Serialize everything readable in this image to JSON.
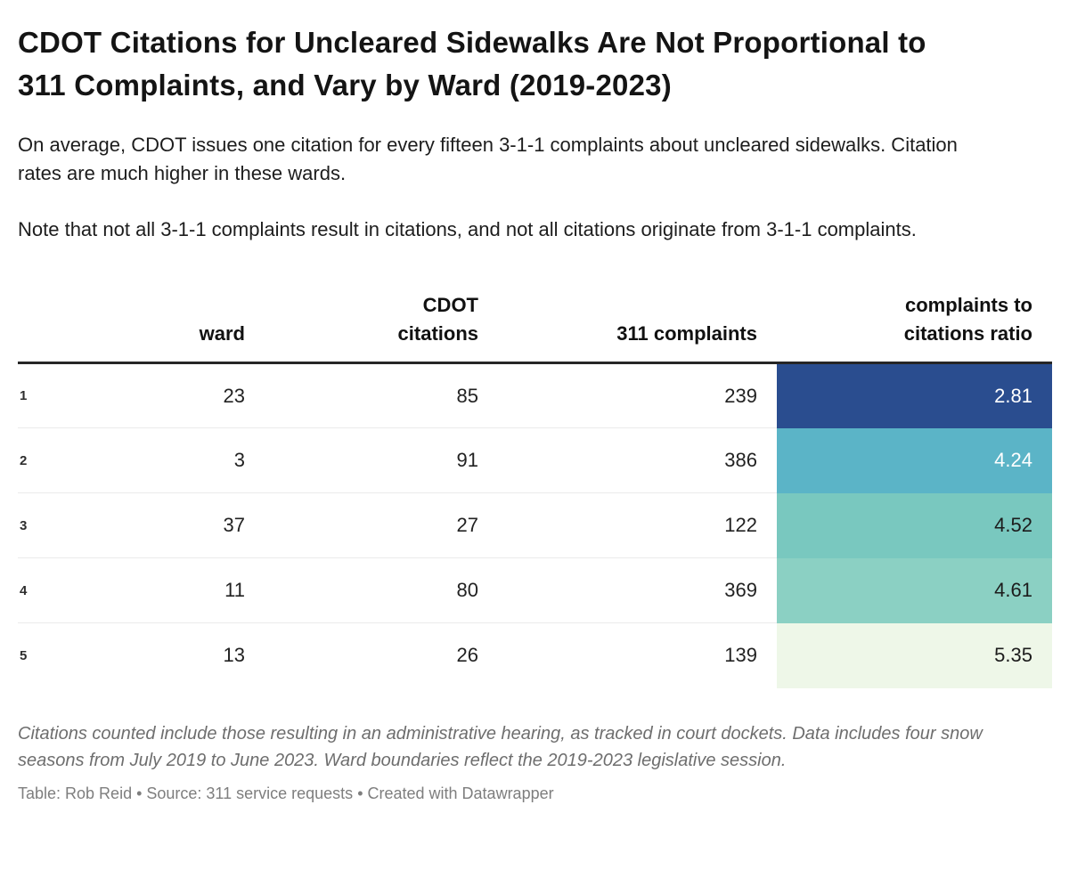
{
  "header": {
    "title": "CDOT Citations for Uncleared Sidewalks Are Not Proportional to 311 Complaints, and Vary by Ward (2019-2023)",
    "description_para1": "On average, CDOT issues one citation for every fifteen 3-1-1 complaints about uncleared sidewalks. Citation rates are much higher in these wards.",
    "description_para2": "Note that not all 3-1-1 complaints result in citations, and not all citations originate from 3-1-1 complaints."
  },
  "chart_data": {
    "type": "table",
    "title": "CDOT Citations for Uncleared Sidewalks Are Not Proportional to 311 Complaints, and Vary by Ward (2019-2023)",
    "columns": [
      "ward",
      "CDOT citations",
      "311 complaints",
      "complaints to citations ratio"
    ],
    "rows": [
      {
        "rank": 1,
        "ward": 23,
        "cdot_citations": 85,
        "complaints_311": 239,
        "ratio": 2.81
      },
      {
        "rank": 2,
        "ward": 3,
        "cdot_citations": 91,
        "complaints_311": 386,
        "ratio": 4.24
      },
      {
        "rank": 3,
        "ward": 37,
        "cdot_citations": 27,
        "complaints_311": 122,
        "ratio": 4.52
      },
      {
        "rank": 4,
        "ward": 11,
        "cdot_citations": 80,
        "complaints_311": 369,
        "ratio": 4.61
      },
      {
        "rank": 5,
        "ward": 13,
        "cdot_citations": 26,
        "complaints_311": 139,
        "ratio": 5.35
      }
    ],
    "heatmap_column": "complaints to citations ratio",
    "layout_hints": "ratio column colored dark-blue (low ratio) to pale-green (high ratio); all numeric columns right-aligned"
  },
  "table": {
    "column_labels": {
      "index": "",
      "ward": "ward",
      "citations": "CDOT\ncitations",
      "complaints": "311 complaints",
      "ratio": "complaints to\ncitations ratio"
    },
    "ratio_cells": [
      {
        "bg": "#2a4d8f",
        "color": "#ffffff"
      },
      {
        "bg": "#5bb4c7",
        "color": "#ffffff"
      },
      {
        "bg": "#79c8bf",
        "color": "#1c1c1c"
      },
      {
        "bg": "#8bd0c3",
        "color": "#1c1c1c"
      },
      {
        "bg": "#eef7e8",
        "color": "#1c1c1c"
      }
    ]
  },
  "footer": {
    "footnote": "Citations counted include those resulting in an administrative hearing, as tracked in court dockets. Data includes four snow seasons from July 2019 to June 2023. Ward boundaries reflect the 2019-2023 legislative session.",
    "credit_prefix": "Table: Rob Reid • Source: ",
    "credit_source_link": "311 service requests",
    "credit_middle": " • Created with ",
    "credit_brand_link": "Datawrapper"
  }
}
